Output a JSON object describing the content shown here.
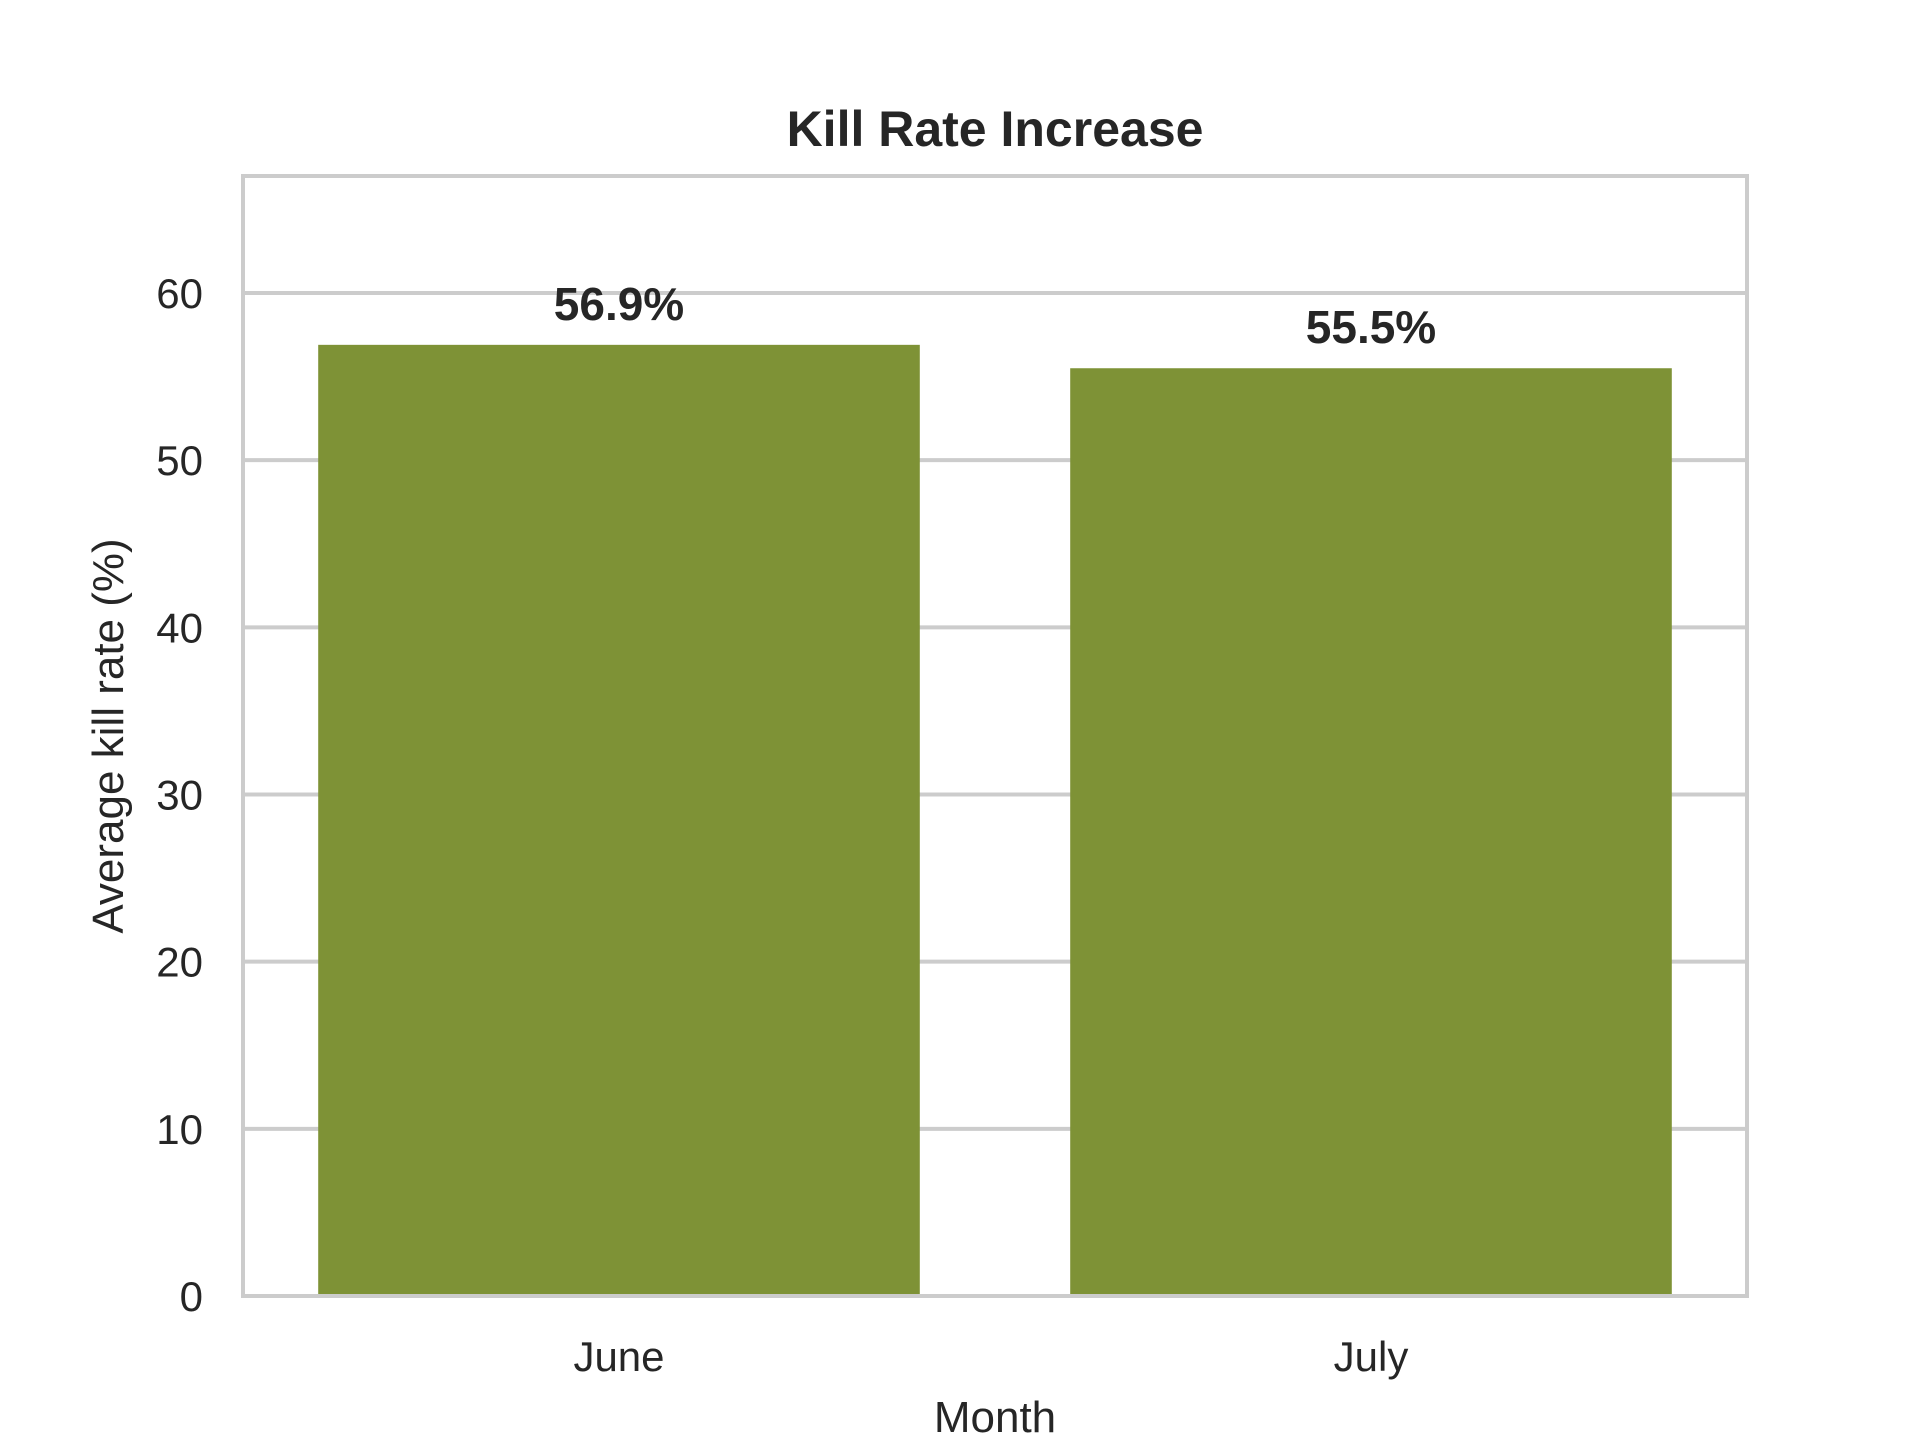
{
  "chart_data": {
    "type": "bar",
    "title": "Kill Rate Increase",
    "xlabel": "Month",
    "ylabel": "Average kill rate (%)",
    "categories": [
      "June",
      "July"
    ],
    "values": [
      56.9,
      55.5
    ],
    "data_labels": [
      "56.9%",
      "55.5%"
    ],
    "ylim": [
      0,
      67
    ],
    "yticks": [
      0,
      10,
      20,
      30,
      40,
      50,
      60
    ],
    "ytick_labels": [
      "0",
      "10",
      "20",
      "30",
      "40",
      "50",
      "60"
    ],
    "grid": true,
    "legend": "none",
    "colors": {
      "bar": "#7e9236",
      "grid": "#cccccc",
      "frame": "#cccccc",
      "text": "#262626"
    }
  }
}
